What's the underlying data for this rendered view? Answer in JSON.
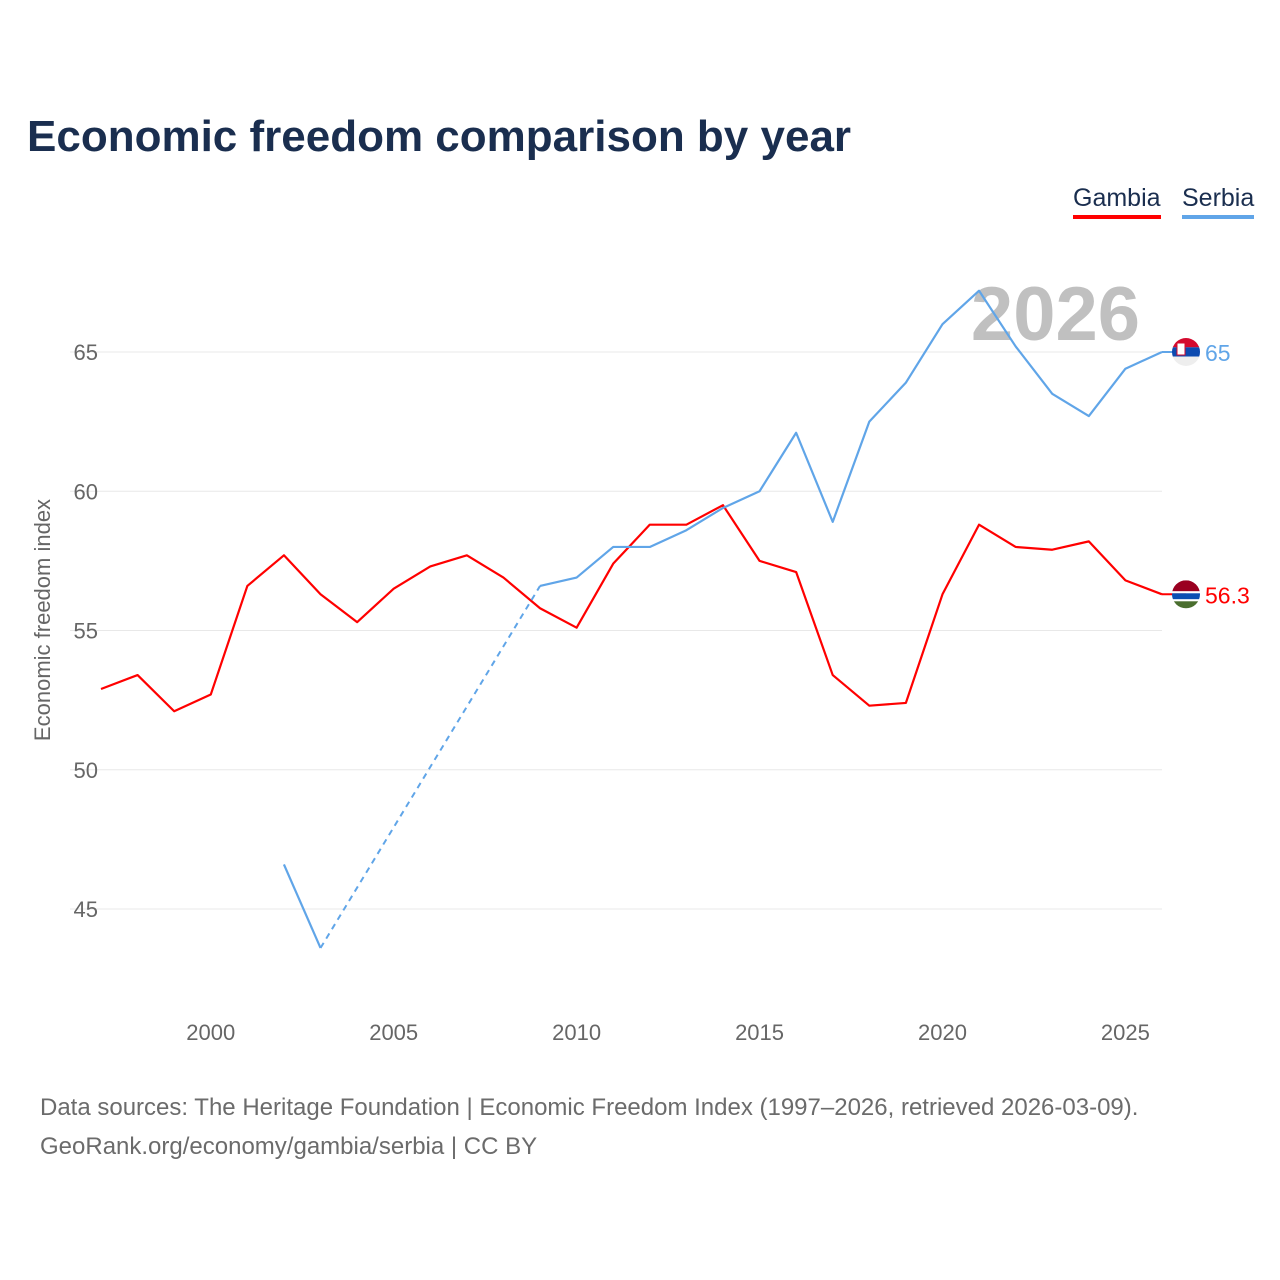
{
  "chart_data": {
    "type": "line",
    "title": "Economic freedom comparison by year",
    "ylabel": "Economic freedom index",
    "xlabel": "",
    "xlim": [
      1997,
      2026
    ],
    "ylim": [
      45,
      65
    ],
    "x_ticks": [
      2000,
      2005,
      2010,
      2015,
      2020,
      2025
    ],
    "y_ticks": [
      45,
      50,
      55,
      60,
      65
    ],
    "grid": true,
    "legend_position": "top-right",
    "current_year_label": "2026",
    "series": [
      {
        "name": "Gambia",
        "color": "#ff0000",
        "end_label": "56.3",
        "x": [
          1997,
          1998,
          1999,
          2000,
          2001,
          2002,
          2003,
          2004,
          2005,
          2006,
          2007,
          2008,
          2009,
          2010,
          2011,
          2012,
          2013,
          2014,
          2015,
          2016,
          2017,
          2018,
          2019,
          2020,
          2021,
          2022,
          2023,
          2024,
          2025,
          2026
        ],
        "values": [
          52.9,
          53.4,
          52.1,
          52.7,
          56.6,
          57.7,
          56.3,
          55.3,
          56.5,
          57.3,
          57.7,
          56.9,
          55.8,
          55.1,
          57.4,
          58.8,
          58.8,
          59.5,
          57.5,
          57.1,
          53.4,
          52.3,
          52.4,
          56.3,
          58.8,
          58.0,
          57.9,
          58.2,
          56.8,
          56.3
        ]
      },
      {
        "name": "Serbia",
        "color": "#60a5e8",
        "end_label": "65",
        "x": [
          2002,
          2003,
          2004,
          2005,
          2006,
          2007,
          2008,
          2009,
          2010,
          2011,
          2012,
          2013,
          2014,
          2015,
          2016,
          2017,
          2018,
          2019,
          2020,
          2021,
          2022,
          2023,
          2024,
          2025,
          2026
        ],
        "values": [
          46.6,
          43.6,
          null,
          null,
          null,
          null,
          null,
          56.6,
          56.9,
          58.0,
          58.0,
          58.6,
          59.4,
          60.0,
          62.1,
          58.9,
          62.5,
          63.9,
          66.0,
          67.2,
          65.2,
          63.5,
          62.7,
          64.4,
          65.0
        ]
      }
    ]
  },
  "footer": {
    "line1": "Data sources: The Heritage Foundation | Economic Freedom Index (1997–2026, retrieved 2026-03-09).",
    "line2": "GeoRank.org/economy/gambia/serbia | CC BY"
  }
}
